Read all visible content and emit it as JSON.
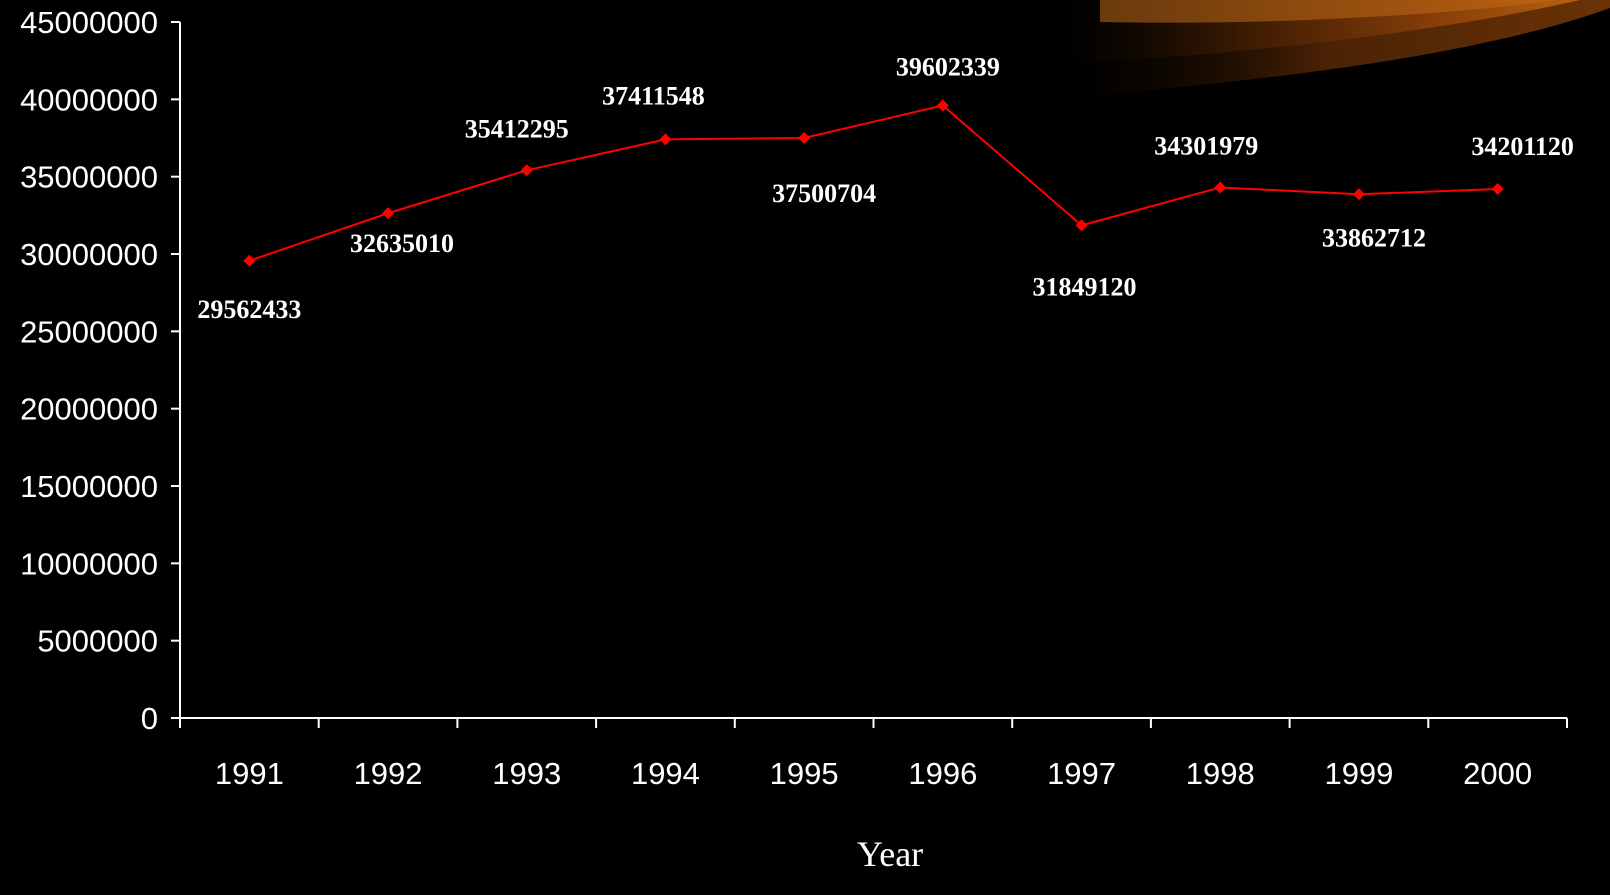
{
  "chart_data": {
    "type": "line",
    "title": "",
    "xlabel": "Year",
    "ylabel": "",
    "categories": [
      "1991",
      "1992",
      "1993",
      "1994",
      "1995",
      "1996",
      "1997",
      "1998",
      "1999",
      "2000"
    ],
    "series": [
      {
        "values": [
          29562433,
          32635010,
          35412295,
          37411548,
          37500704,
          39602339,
          31849120,
          34301979,
          33862712,
          34201120
        ],
        "color": "#ff0000",
        "marker": "diamond"
      }
    ],
    "data_labels": [
      "29562433",
      "32635010",
      "35412295",
      "37411548",
      "37500704",
      "39602339",
      "31849120",
      "34301979",
      "33862712",
      "34201120"
    ],
    "y_ticks": [
      "0",
      "5000000",
      "10000000",
      "15000000",
      "20000000",
      "25000000",
      "30000000",
      "35000000",
      "40000000",
      "45000000"
    ],
    "ylim": [
      0,
      45000000
    ],
    "grid": false,
    "legend": "none",
    "background": "#000000",
    "axis_color": "#ffffff",
    "text_color": "#ffffff"
  }
}
